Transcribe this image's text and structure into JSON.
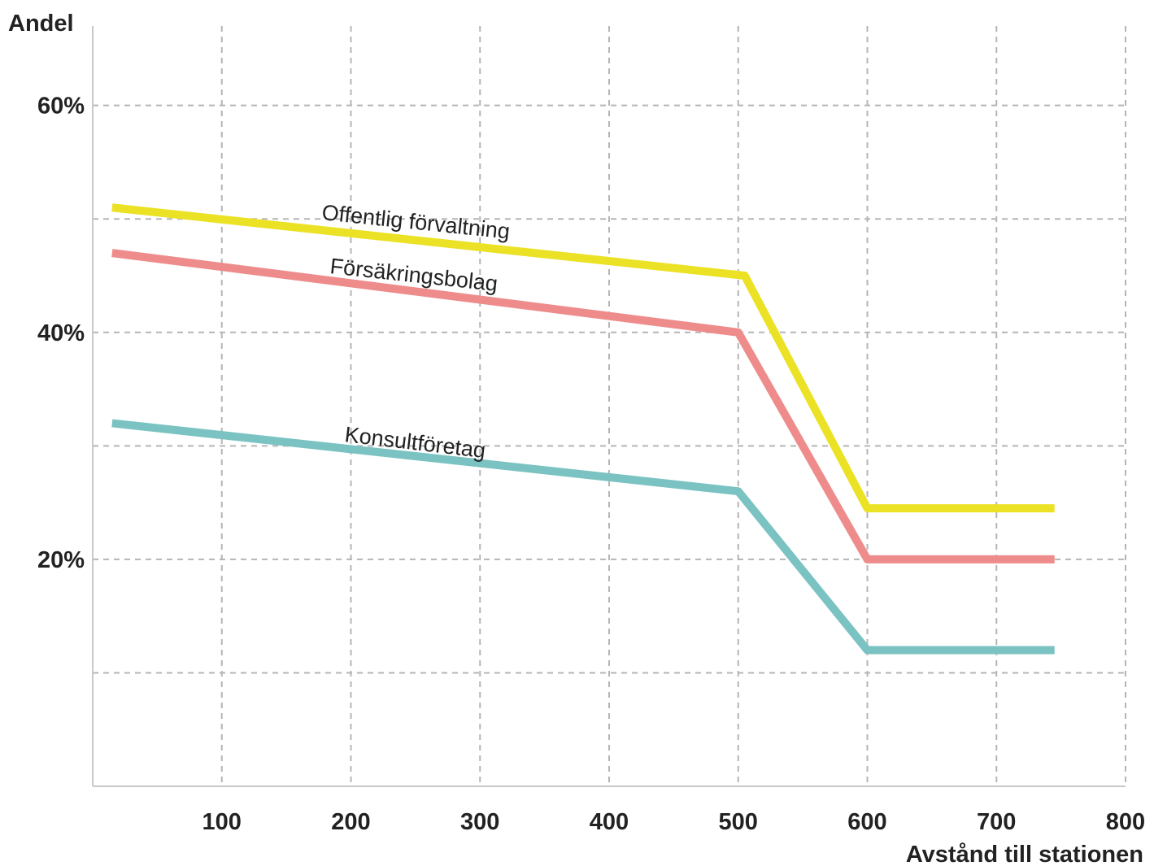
{
  "chart_data": {
    "type": "line",
    "title": "",
    "ylabel": "Andel",
    "xlabel": "Avstånd till stationen",
    "xlim": [
      0,
      800
    ],
    "ylim": [
      0,
      67
    ],
    "x_ticks": [
      100,
      200,
      300,
      400,
      500,
      600,
      700,
      800
    ],
    "x_tick_labels": [
      "100",
      "200",
      "300",
      "400",
      "500",
      "600",
      "700",
      "800"
    ],
    "y_ticks": [
      20,
      40,
      60
    ],
    "y_tick_labels": [
      "20%",
      "40%",
      "60%"
    ],
    "y_grid": [
      10,
      20,
      30,
      40,
      50,
      60
    ],
    "grid": true,
    "legend": "inline labels on lines",
    "series": [
      {
        "name": "Offentlig förvaltning",
        "color": "#ebe226",
        "x": [
          15,
          505,
          600,
          745
        ],
        "y": [
          51,
          45,
          24.5,
          24.5
        ]
      },
      {
        "name": "Försäkringsbolag",
        "color": "#ee8c8c",
        "x": [
          15,
          500,
          600,
          745
        ],
        "y": [
          47,
          40,
          20,
          20
        ]
      },
      {
        "name": "Konsultföretag",
        "color": "#7bc3c2",
        "x": [
          15,
          500,
          600,
          745
        ],
        "y": [
          32,
          26,
          12,
          12
        ]
      }
    ]
  }
}
